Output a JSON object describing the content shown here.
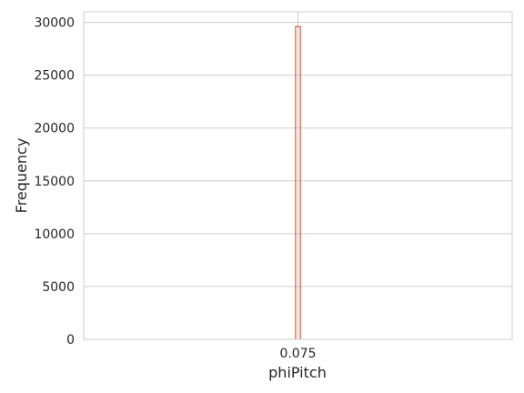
{
  "chart_data": {
    "type": "bar",
    "title": "",
    "xlabel": "phiPitch",
    "ylabel": "Frequency",
    "x_ticks": [
      "0.075"
    ],
    "x_tick_values": [
      0.075
    ],
    "y_ticks": [
      "0",
      "5000",
      "10000",
      "15000",
      "20000",
      "25000",
      "30000"
    ],
    "y_tick_values": [
      0,
      5000,
      10000,
      15000,
      20000,
      25000,
      30000
    ],
    "xlim": [
      0.03,
      0.12
    ],
    "ylim": [
      0,
      31000
    ],
    "grid": true,
    "histtype": "step",
    "bars": [
      {
        "x_start": 0.0745,
        "x_end": 0.0755,
        "value": 29600
      }
    ],
    "colors": {
      "bar_edge": "#d9583b",
      "grid": "#cccccc",
      "frame": "#cccccc",
      "text": "#262626"
    }
  }
}
